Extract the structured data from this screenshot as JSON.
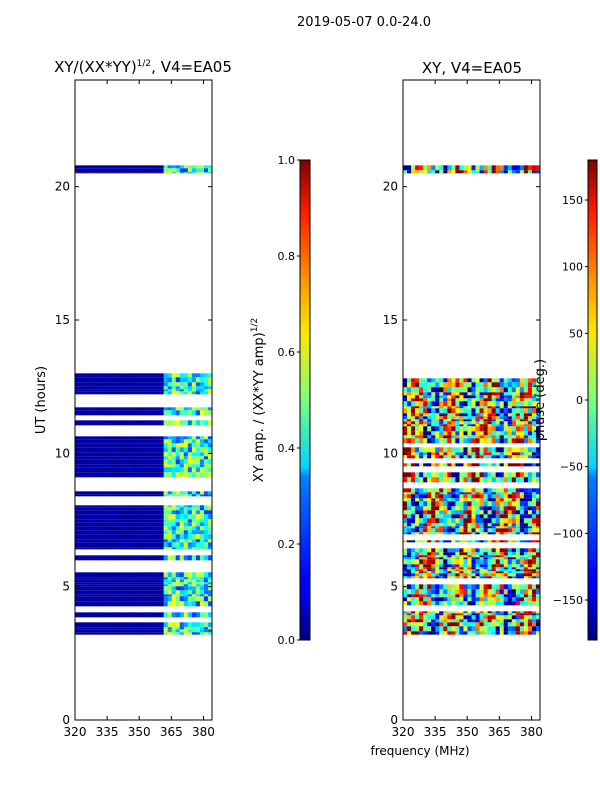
{
  "chart_data": [
    {
      "type": "heatmap",
      "title_base": "XY/(XX*YY)",
      "title_exp": "1/2",
      "title_suffix": ", V4=EA05",
      "ylabel": "UT (hours)",
      "xlim": [
        320,
        384
      ],
      "ylim": [
        0,
        24
      ],
      "xticks": [
        "320",
        "335",
        "350",
        "365",
        "380"
      ],
      "xtick_values": [
        320,
        335,
        350,
        365,
        380
      ],
      "yticks": [
        "0",
        "5",
        "10",
        "15",
        "20"
      ],
      "ytick_values": [
        0,
        5,
        10,
        15,
        20
      ],
      "data_freq_range": [
        320,
        384
      ],
      "data_time_ranges": [
        [
          3.2,
          13.0
        ],
        [
          20.5,
          20.8
        ]
      ],
      "colormap": "jet",
      "colorbar": {
        "label_base": "XY amp. / (XX*YY amp)",
        "label_exp": "1/2",
        "range": [
          0.0,
          1.0
        ],
        "ticks": [
          "0.0",
          "0.2",
          "0.4",
          "0.6",
          "0.8",
          "1.0"
        ],
        "tick_values": [
          0.0,
          0.2,
          0.4,
          0.6,
          0.8,
          1.0
        ]
      }
    },
    {
      "type": "heatmap",
      "title_base": "XY, V4=EA05",
      "xlim": [
        320,
        384
      ],
      "ylim": [
        0,
        24
      ],
      "xticks": [
        "320",
        "335",
        "350",
        "365",
        "380"
      ],
      "xtick_values": [
        320,
        335,
        350,
        365,
        380
      ],
      "yticks": [
        "0",
        "5",
        "10",
        "15",
        "20"
      ],
      "ytick_values": [
        0,
        5,
        10,
        15,
        20
      ],
      "data_freq_range": [
        320,
        384
      ],
      "data_time_ranges": [
        [
          3.2,
          13.0
        ],
        [
          20.5,
          20.8
        ]
      ],
      "colormap": "jet",
      "colorbar": {
        "label": "phase (deg.)",
        "range": [
          -180,
          180
        ],
        "ticks": [
          "−150",
          "−100",
          "−50",
          "0",
          "50",
          "100",
          "150"
        ],
        "tick_values": [
          -150,
          -100,
          -50,
          0,
          50,
          100,
          150
        ]
      }
    }
  ],
  "suptitle": "2019-05-07 0.0-24.0",
  "shared_xlabel": "frequency (MHz)"
}
